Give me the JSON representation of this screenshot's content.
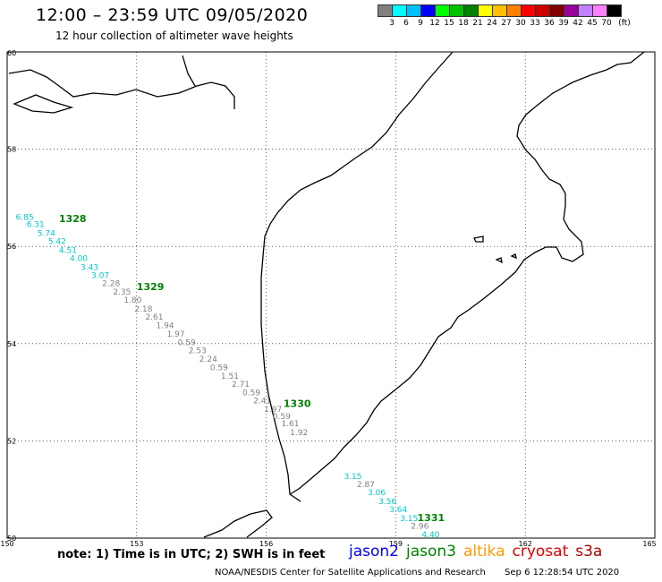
{
  "header": {
    "title": "12:00 – 23:59 UTC 09/05/2020",
    "subtitle": "12 hour collection of altimeter wave heights"
  },
  "legend": {
    "colors": [
      "#808080",
      "#00ffff",
      "#00bfff",
      "#0000ff",
      "#00ff00",
      "#00c000",
      "#008000",
      "#ffff00",
      "#ffbf00",
      "#ff8000",
      "#ff0000",
      "#cc0000",
      "#800000",
      "#990099",
      "#c080ff",
      "#ff80ff",
      "#000000"
    ],
    "labels": [
      "3",
      "6",
      "9",
      "12",
      "15",
      "18",
      "21",
      "24",
      "27",
      "30",
      "33",
      "36",
      "39",
      "42",
      "45",
      "70"
    ],
    "unit": "(ft)"
  },
  "axes": {
    "lon_ticks": [
      "150",
      "153",
      "156",
      "159",
      "162",
      "165"
    ],
    "lat_ticks": [
      "60",
      "58",
      "56",
      "54",
      "52",
      "50"
    ]
  },
  "chart_data": {
    "type": "scatter",
    "title": "12:00 – 23:59 UTC 09/05/2020",
    "xlim": [
      150,
      165
    ],
    "ylim": [
      50,
      60
    ],
    "grid": true,
    "units": "ft",
    "tracks": [
      {
        "pass": "1328",
        "satellite": "jason3",
        "label_lon": 151.2,
        "label_lat": 56.5
      },
      {
        "pass": "1329",
        "satellite": "jason3",
        "label_lon": 153.0,
        "label_lat": 55.1
      },
      {
        "pass": "1330",
        "satellite": "jason3",
        "label_lon": 156.4,
        "label_lat": 52.7
      },
      {
        "pass": "1331",
        "satellite": "jason3",
        "label_lon": 159.5,
        "label_lat": 50.35
      }
    ],
    "points": [
      {
        "lon": 150.2,
        "lat": 56.55,
        "swh": "6.85",
        "color": "#00c8c8"
      },
      {
        "lon": 150.45,
        "lat": 56.4,
        "swh": "6.31",
        "color": "#00c8c8"
      },
      {
        "lon": 150.7,
        "lat": 56.22,
        "swh": "5.74",
        "color": "#00c8c8"
      },
      {
        "lon": 150.95,
        "lat": 56.05,
        "swh": "5.42",
        "color": "#00c8c8"
      },
      {
        "lon": 151.2,
        "lat": 55.87,
        "swh": "4.51",
        "color": "#00c8c8"
      },
      {
        "lon": 151.45,
        "lat": 55.7,
        "swh": "4.00",
        "color": "#00c8c8"
      },
      {
        "lon": 151.7,
        "lat": 55.52,
        "swh": "3.43",
        "color": "#00c8c8"
      },
      {
        "lon": 151.95,
        "lat": 55.35,
        "swh": "3.07",
        "color": "#00c8c8"
      },
      {
        "lon": 152.2,
        "lat": 55.18,
        "swh": "2.28",
        "color": "#808080"
      },
      {
        "lon": 152.45,
        "lat": 55.01,
        "swh": "2.35",
        "color": "#808080"
      },
      {
        "lon": 152.7,
        "lat": 54.84,
        "swh": "1.80",
        "color": "#808080"
      },
      {
        "lon": 152.95,
        "lat": 54.66,
        "swh": "2.18",
        "color": "#808080"
      },
      {
        "lon": 153.2,
        "lat": 54.49,
        "swh": "2.61",
        "color": "#808080"
      },
      {
        "lon": 153.45,
        "lat": 54.32,
        "swh": "1.94",
        "color": "#808080"
      },
      {
        "lon": 153.7,
        "lat": 54.14,
        "swh": "1.97",
        "color": "#808080"
      },
      {
        "lon": 153.95,
        "lat": 53.97,
        "swh": "0.59",
        "color": "#808080"
      },
      {
        "lon": 154.2,
        "lat": 53.8,
        "swh": "2.53",
        "color": "#808080"
      },
      {
        "lon": 154.45,
        "lat": 53.63,
        "swh": "2.24",
        "color": "#808080"
      },
      {
        "lon": 154.7,
        "lat": 53.45,
        "swh": "0.59",
        "color": "#808080"
      },
      {
        "lon": 154.95,
        "lat": 53.28,
        "swh": "1.51",
        "color": "#808080"
      },
      {
        "lon": 155.2,
        "lat": 53.11,
        "swh": "2.71",
        "color": "#808080"
      },
      {
        "lon": 155.45,
        "lat": 52.94,
        "swh": "0.59",
        "color": "#808080"
      },
      {
        "lon": 155.7,
        "lat": 52.77,
        "swh": "2.41",
        "color": "#808080"
      },
      {
        "lon": 155.95,
        "lat": 52.6,
        "swh": "1.97",
        "color": "#808080"
      },
      {
        "lon": 156.15,
        "lat": 52.45,
        "swh": "0.59",
        "color": "#808080"
      },
      {
        "lon": 156.35,
        "lat": 52.3,
        "swh": "1.61",
        "color": "#808080"
      },
      {
        "lon": 156.55,
        "lat": 52.12,
        "swh": "1.92",
        "color": "#808080"
      },
      {
        "lon": 157.8,
        "lat": 51.22,
        "swh": "3.15",
        "color": "#00c8c8"
      },
      {
        "lon": 158.1,
        "lat": 51.05,
        "swh": "2.87",
        "color": "#808080"
      },
      {
        "lon": 158.35,
        "lat": 50.88,
        "swh": "3.06",
        "color": "#00c8c8"
      },
      {
        "lon": 158.6,
        "lat": 50.7,
        "swh": "3.56",
        "color": "#00c8c8"
      },
      {
        "lon": 158.85,
        "lat": 50.53,
        "swh": "3.64",
        "color": "#00c8c8"
      },
      {
        "lon": 159.1,
        "lat": 50.35,
        "swh": "3.15",
        "color": "#00c8c8"
      },
      {
        "lon": 159.35,
        "lat": 50.19,
        "swh": "2.96",
        "color": "#808080"
      },
      {
        "lon": 159.6,
        "lat": 50.02,
        "swh": "4.40",
        "color": "#00c8c8"
      }
    ]
  },
  "note": "note: 1) Time is in UTC; 2) SWH is in feet",
  "satellites": [
    {
      "name": "jason2",
      "color": "#0000ff"
    },
    {
      "name": "jason3",
      "color": "#008000"
    },
    {
      "name": "altika",
      "color": "#ff9900"
    },
    {
      "name": "cryosat",
      "color": "#dd0000"
    },
    {
      "name": "s3a",
      "color": "#aa0000"
    }
  ],
  "footer": {
    "credit": "NOAA/NESDIS Center for Satellite Applications and Research",
    "timestamp": "Sep  6 12:28:54 UTC 2020"
  }
}
